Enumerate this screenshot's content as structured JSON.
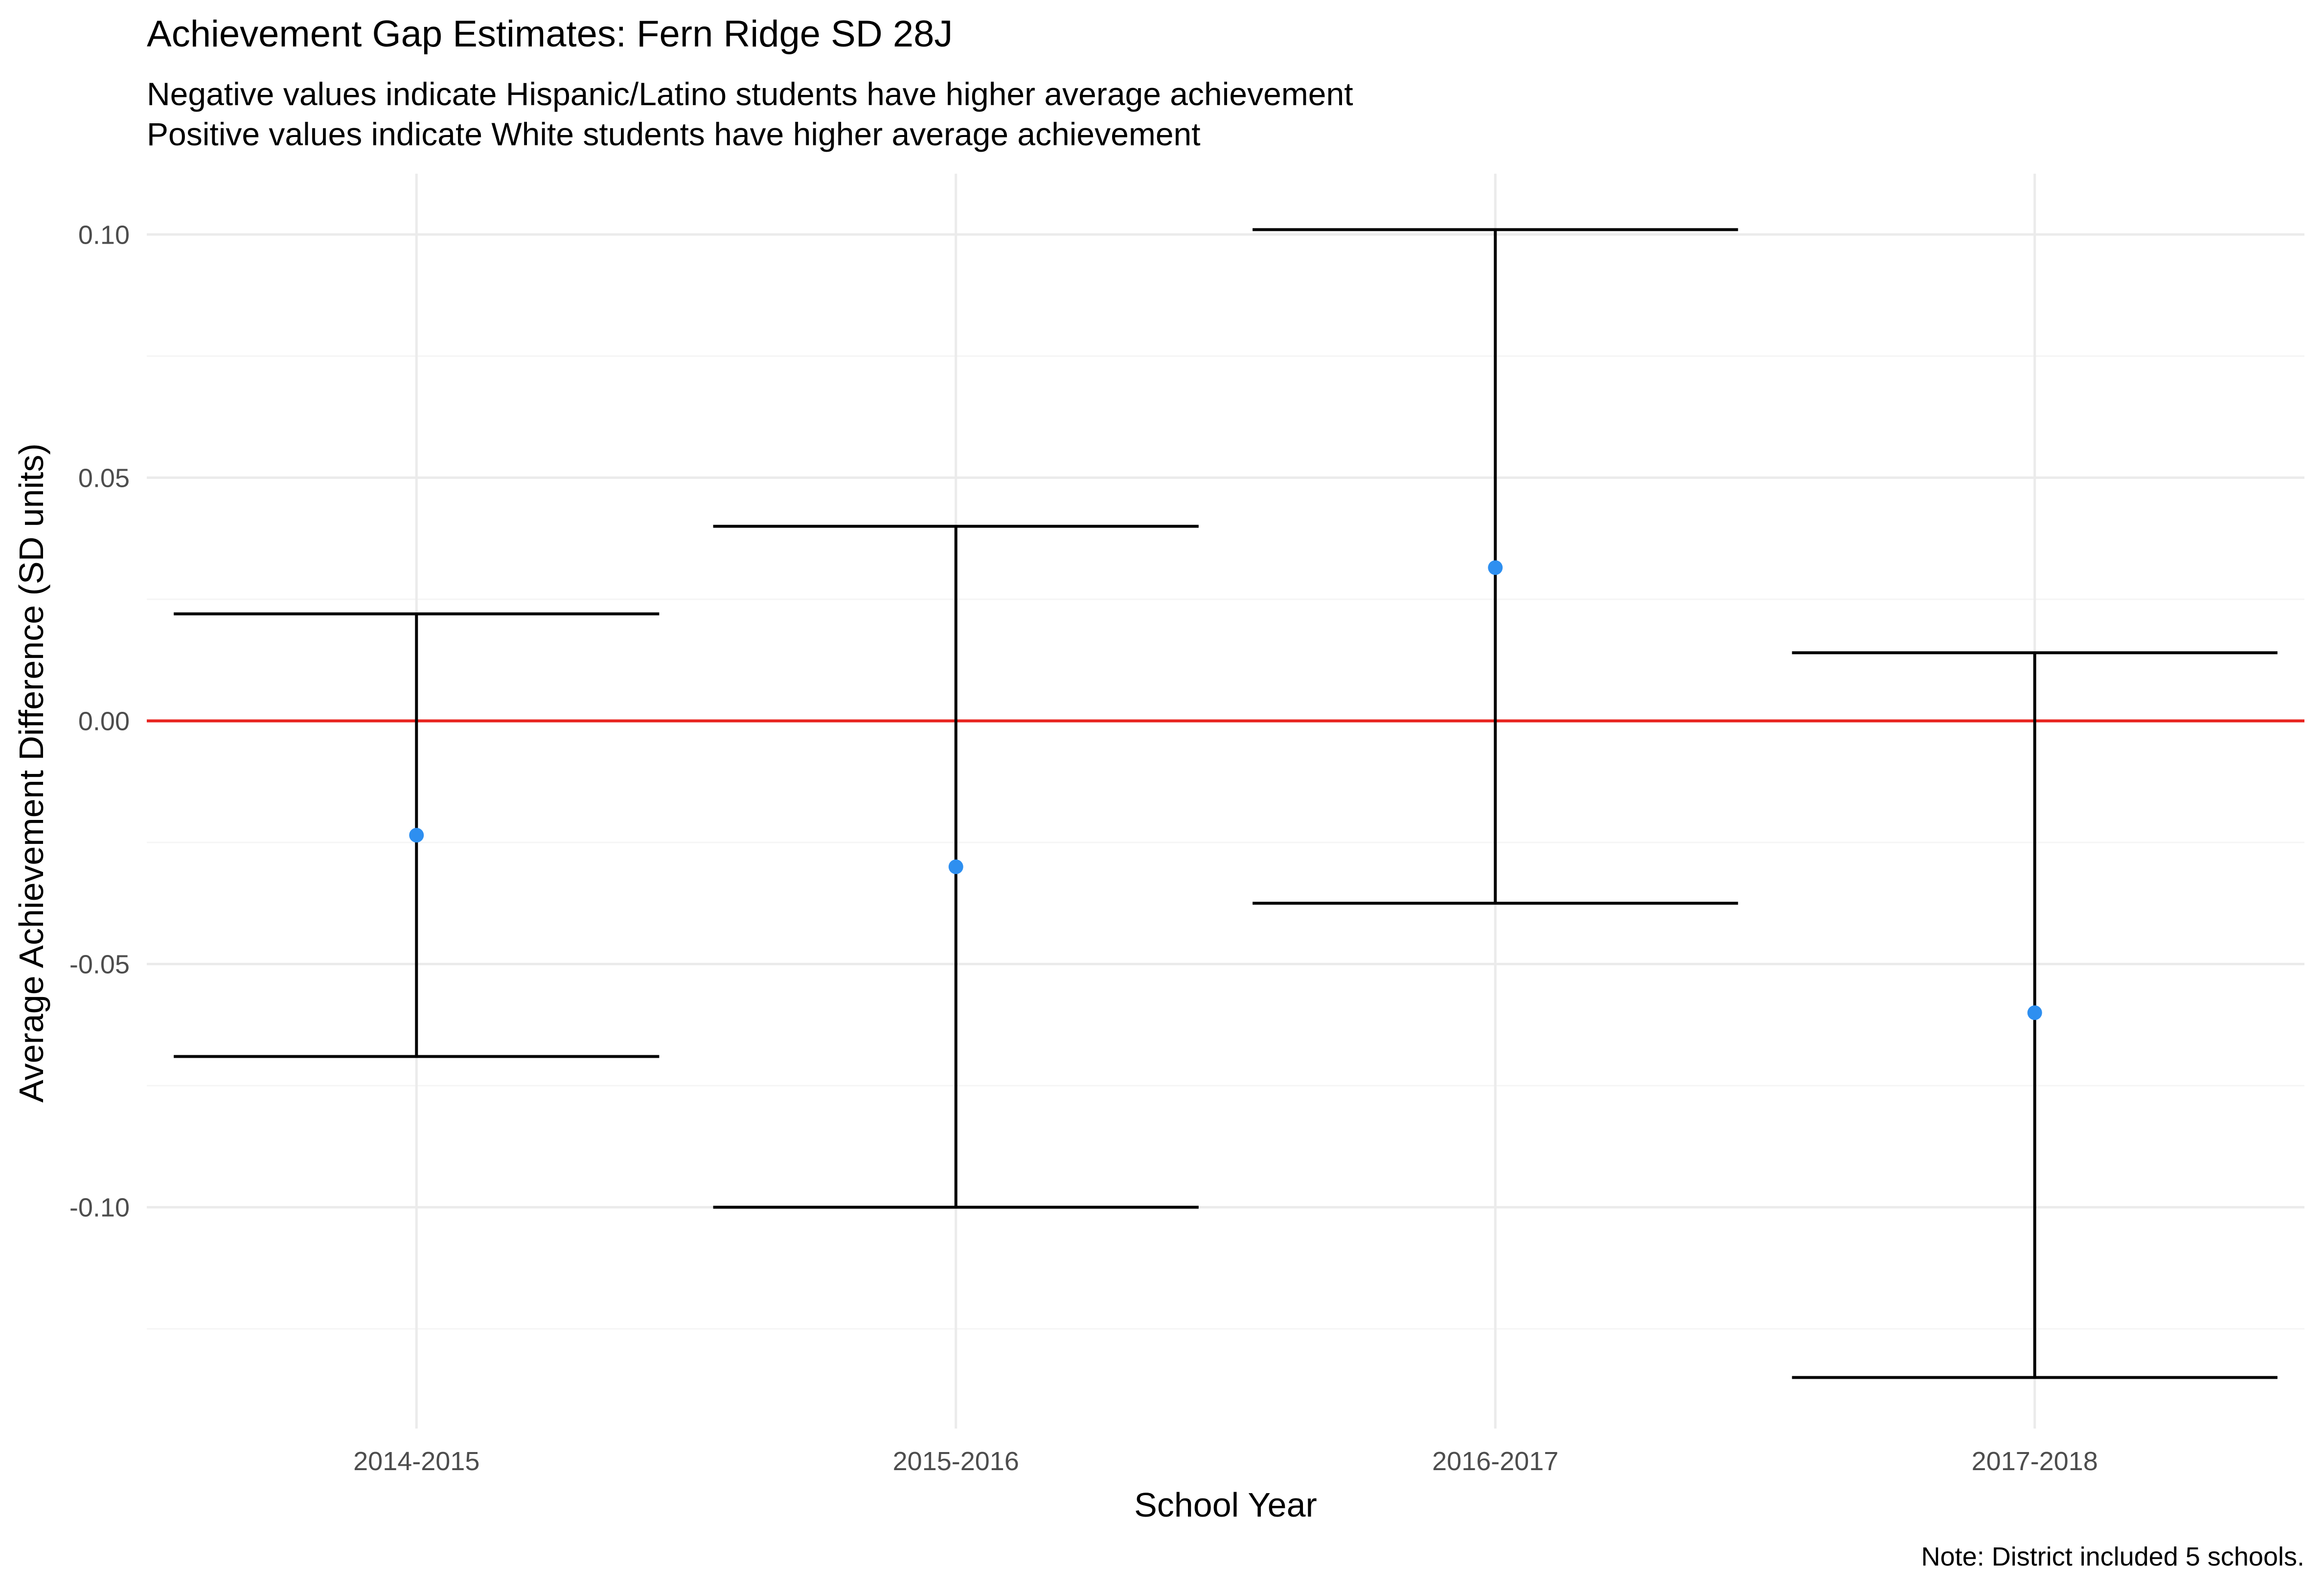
{
  "chart_data": {
    "type": "errorbar",
    "title": "Achievement Gap Estimates: Fern Ridge SD 28J",
    "subtitle_lines": [
      "Negative values indicate Hispanic/Latino students have higher average achievement",
      "Positive values indicate White students have higher average achievement"
    ],
    "xlabel": "School Year",
    "ylabel": "Average Achievement Difference (SD units)",
    "caption": "Note: District included 5 schools.",
    "categories": [
      "2014-2015",
      "2015-2016",
      "2016-2017",
      "2017-2018"
    ],
    "estimates": [
      -0.0235,
      -0.03,
      0.0315,
      -0.06
    ],
    "lower": [
      -0.069,
      -0.1,
      -0.0375,
      -0.135
    ],
    "upper": [
      0.022,
      0.04,
      0.101,
      0.014
    ],
    "ylim": [
      -0.1455,
      0.1125
    ],
    "yticks": [
      0.1,
      0.05,
      0.0,
      -0.05,
      -0.1
    ],
    "ytick_labels": [
      "0.10",
      "0.05",
      "0.00",
      "-0.05",
      "-0.10"
    ],
    "reference_line": 0,
    "grid": true,
    "colors": {
      "point": "#2e8ff0",
      "errorbar": "#000000",
      "reference_line": "#e8231f",
      "grid_major": "#ebebeb",
      "grid_minor": "#f5f5f5"
    }
  }
}
